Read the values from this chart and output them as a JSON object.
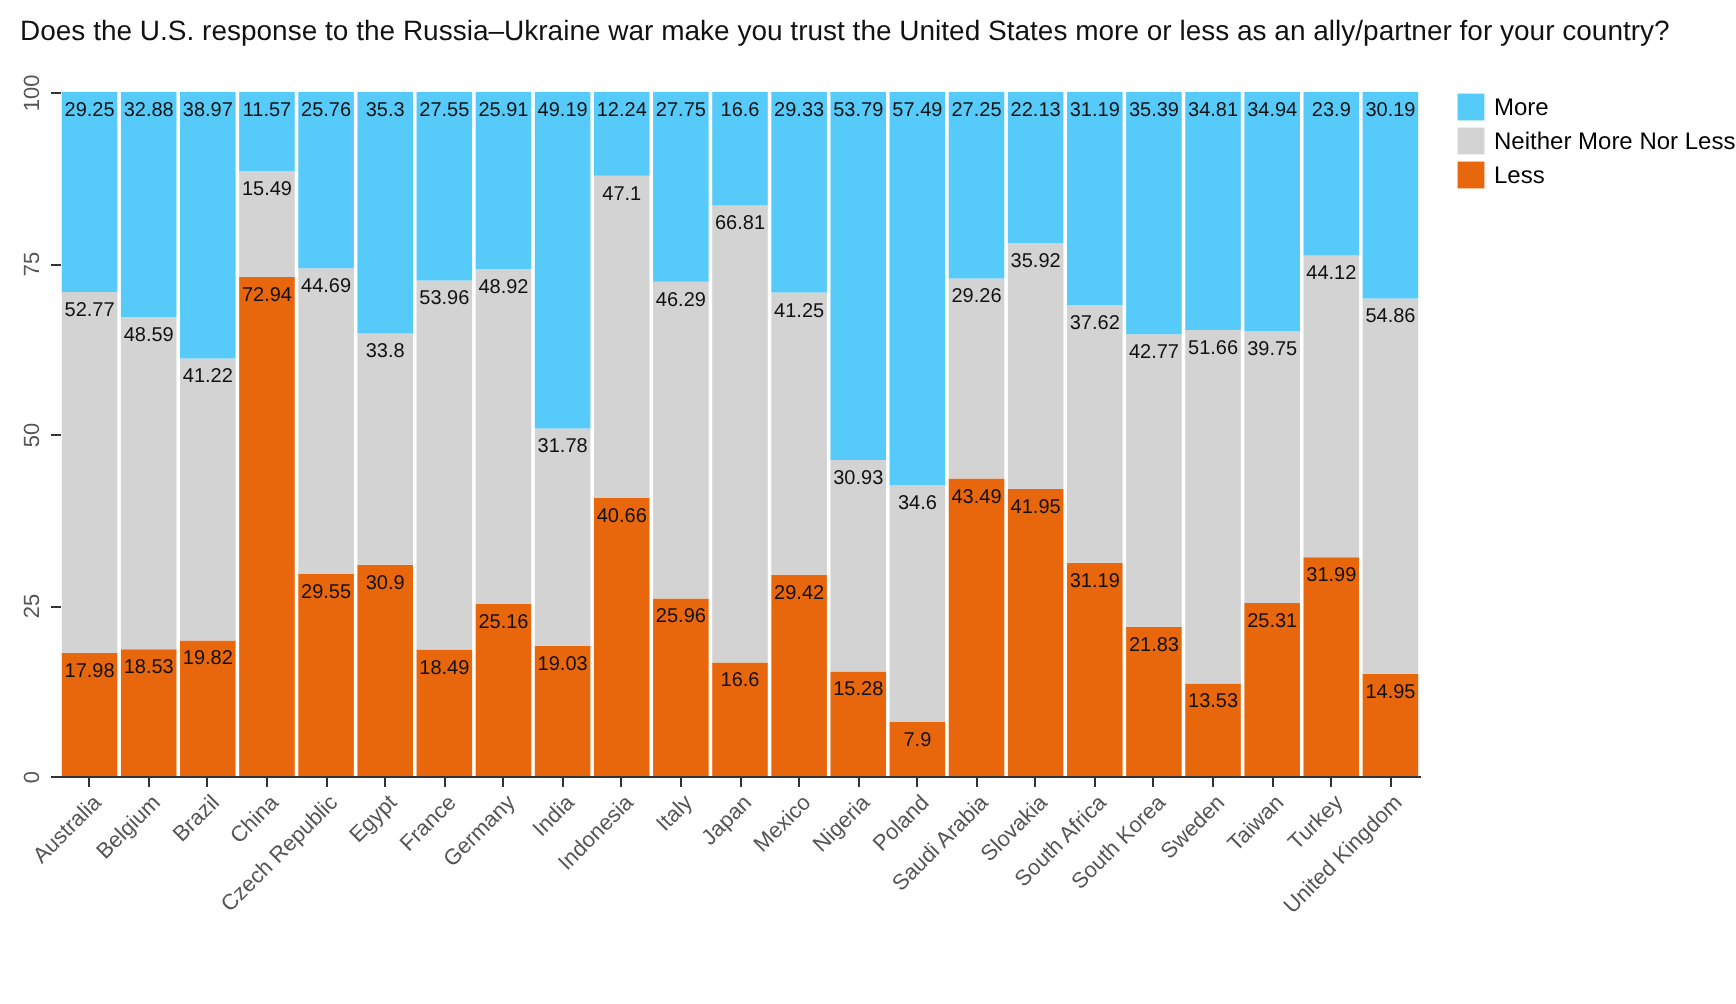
{
  "chart_data": {
    "type": "bar",
    "stacked": true,
    "title": "Does the U.S. response to the Russia–Ukraine war make you trust the United States more or less as an ally/partner for your country?",
    "categories": [
      "Australia",
      "Belgium",
      "Brazil",
      "China",
      "Czech Republic",
      "Egypt",
      "France",
      "Germany",
      "India",
      "Indonesia",
      "Italy",
      "Japan",
      "Mexico",
      "Nigeria",
      "Poland",
      "Saudi Arabia",
      "Slovakia",
      "South Africa",
      "South Korea",
      "Sweden",
      "Taiwan",
      "Turkey",
      "United Kingdom"
    ],
    "series": [
      {
        "name": "Less",
        "color": "#e8670c",
        "values": [
          17.98,
          18.53,
          19.82,
          72.94,
          29.55,
          30.9,
          18.49,
          25.16,
          19.03,
          40.66,
          25.96,
          16.6,
          29.42,
          15.28,
          7.9,
          43.49,
          41.95,
          31.19,
          21.83,
          13.53,
          25.31,
          31.99,
          14.95
        ]
      },
      {
        "name": "Neither More Nor Less",
        "color": "#d3d3d3",
        "values": [
          52.77,
          48.59,
          41.22,
          15.49,
          44.69,
          33.8,
          53.96,
          48.92,
          31.78,
          47.1,
          46.29,
          66.81,
          41.25,
          30.93,
          34.6,
          29.26,
          35.92,
          37.62,
          42.77,
          51.66,
          39.75,
          44.12,
          54.86
        ]
      },
      {
        "name": "More",
        "color": "#56cbf9",
        "values": [
          29.25,
          32.88,
          38.97,
          11.57,
          25.76,
          35.3,
          27.55,
          25.91,
          49.19,
          12.24,
          27.75,
          16.6,
          29.33,
          53.79,
          57.49,
          27.25,
          22.13,
          31.19,
          35.39,
          34.81,
          34.94,
          23.9,
          30.19
        ]
      }
    ],
    "ylim": [
      0,
      100
    ],
    "yticks": [
      0,
      25,
      50,
      75,
      100
    ],
    "data_labels": true,
    "legend": "right"
  }
}
